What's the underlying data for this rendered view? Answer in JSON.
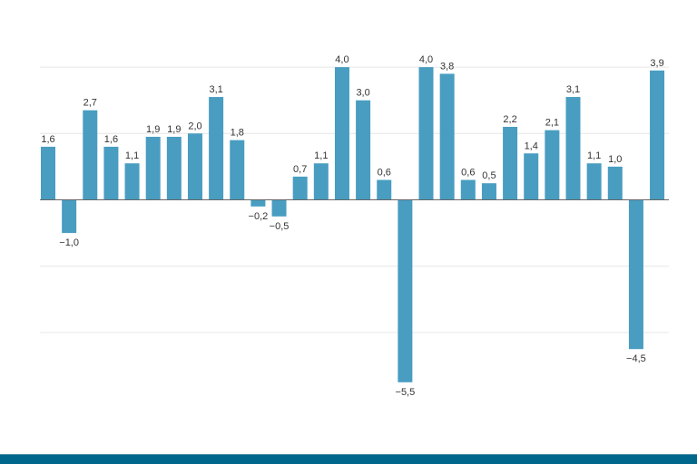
{
  "chart_data": {
    "type": "bar",
    "title": "",
    "xlabel": "",
    "ylabel": "",
    "ylim": [
      -6,
      4
    ],
    "gridlines": [
      -4,
      -2,
      0,
      2,
      4
    ],
    "grid": true,
    "bar_color": "#489dc1",
    "values": [
      1.6,
      -1.0,
      2.7,
      1.6,
      1.1,
      1.9,
      1.9,
      2.0,
      3.1,
      1.8,
      -0.2,
      -0.5,
      0.7,
      1.1,
      4.0,
      3.0,
      0.6,
      -5.5,
      4.0,
      3.8,
      0.6,
      0.5,
      2.2,
      1.4,
      2.1,
      3.1,
      1.1,
      1.0,
      -4.5,
      3.9
    ],
    "labels": [
      "1,6",
      "−1,0",
      "2,7",
      "1,6",
      "1,1",
      "1,9",
      "1,9",
      "2,0",
      "3,1",
      "1,8",
      "−0,2",
      "−0,5",
      "0,7",
      "1,1",
      "4,0",
      "3,0",
      "0,6",
      "−5,5",
      "4,0",
      "3,8",
      "0,6",
      "0,5",
      "2,2",
      "1,4",
      "2,1",
      "3,1",
      "1,1",
      "1,0",
      "−4,5",
      "3,9"
    ]
  },
  "colors": {
    "bar": "#489dc1",
    "footer": "#00678c",
    "grid": "#e6e6e6"
  }
}
